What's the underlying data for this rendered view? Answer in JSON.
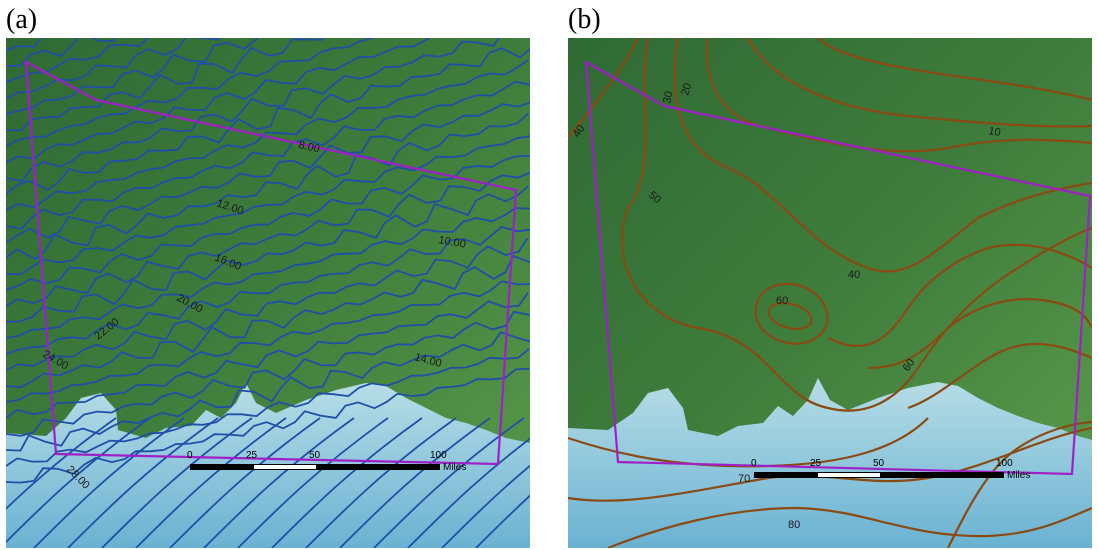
{
  "panels": [
    {
      "label": "(a)",
      "contour_color": "#1f4fa8",
      "contour_labels": [
        "8.00",
        "10.00",
        "12.00",
        "14.00",
        "16.00",
        "20.00",
        "22.00",
        "24.00",
        "28.00"
      ],
      "scale": {
        "ticks": [
          "0",
          "25",
          "50",
          "100"
        ],
        "unit": "Miles"
      }
    },
    {
      "label": "(b)",
      "contour_color": "#8a4a12",
      "contour_labels": [
        "10",
        "20",
        "30",
        "40",
        "50",
        "40",
        "60",
        "60",
        "70",
        "80"
      ],
      "scale": {
        "ticks": [
          "0",
          "25",
          "50",
          "100"
        ],
        "unit": "Miles"
      }
    }
  ],
  "colors": {
    "land": "#3f7a3a",
    "land_light": "#5e9a4c",
    "water": "#a8d4e0",
    "water_deep": "#6fb6d6",
    "boundary": "#a020c8"
  }
}
